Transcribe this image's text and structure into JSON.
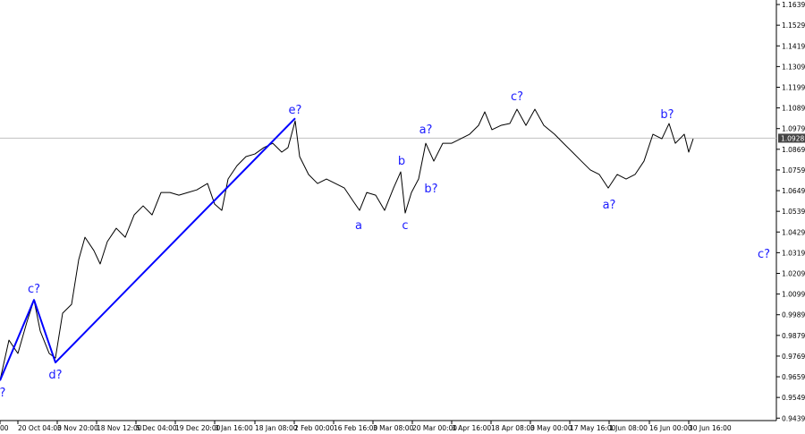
{
  "chart_data": {
    "type": "line",
    "xlim": [
      0,
      868
    ],
    "ylim": [
      0.9426,
      1.1663
    ],
    "xticks": [
      {
        "value": 0,
        "label": "00"
      },
      {
        "value": 20,
        "label": "20 Oct 04:00"
      },
      {
        "value": 64,
        "label": "3 Nov 20:00"
      },
      {
        "value": 108,
        "label": "18 Nov 12:00"
      },
      {
        "value": 152,
        "label": "5 Dec 04:00"
      },
      {
        "value": 196,
        "label": "19 Dec 20:00"
      },
      {
        "value": 240,
        "label": "3 Jan 16:00"
      },
      {
        "value": 285,
        "label": "18 Jan 08:00"
      },
      {
        "value": 329,
        "label": "2 Feb 00:00"
      },
      {
        "value": 373,
        "label": "16 Feb 16:00"
      },
      {
        "value": 417,
        "label": "3 Mar 08:00"
      },
      {
        "value": 461,
        "label": "20 Mar 00:00"
      },
      {
        "value": 505,
        "label": "3 Apr 16:00"
      },
      {
        "value": 549,
        "label": "18 Apr 08:00"
      },
      {
        "value": 593,
        "label": "3 May 00:00"
      },
      {
        "value": 637,
        "label": "17 May 16:00"
      },
      {
        "value": 681,
        "label": "1 Jun 08:00"
      },
      {
        "value": 726,
        "label": "16 Jun 00:00"
      },
      {
        "value": 770,
        "label": "30 Jun 16:00"
      }
    ],
    "yticks": [
      1.1639,
      1.1529,
      1.1419,
      1.1309,
      1.1199,
      1.1089,
      1.0979,
      1.0869,
      1.0759,
      1.0649,
      1.0539,
      1.0429,
      1.0319,
      1.0209,
      1.0099,
      0.9989,
      0.9879,
      0.9769,
      0.9659,
      0.9549,
      0.9439
    ],
    "current_price": 1.0928,
    "series": [
      {
        "color": "#000000",
        "x": [
          0,
          10,
          20,
          30,
          38,
          45,
          55,
          62,
          70,
          80,
          88,
          95,
          105,
          112,
          120,
          130,
          140,
          150,
          160,
          170,
          180,
          190,
          200,
          210,
          220,
          232,
          240,
          248,
          255,
          265,
          275,
          285,
          295,
          305,
          315,
          322,
          330,
          335,
          345,
          355,
          365,
          375,
          385,
          395,
          402,
          410,
          420,
          430,
          440,
          448,
          453,
          460,
          468,
          476,
          485,
          495,
          505,
          515,
          525,
          535,
          542,
          550,
          560,
          570,
          578,
          588,
          598,
          608,
          620,
          630,
          640,
          650,
          660,
          670,
          680,
          690,
          700,
          710,
          720,
          730,
          740,
          748,
          755,
          765,
          770,
          775
        ],
        "values": [
          0.9639,
          0.9854,
          0.9783,
          0.9949,
          1.0068,
          0.9902,
          0.9783,
          0.9759,
          0.9997,
          1.0044,
          1.0282,
          1.0401,
          1.033,
          1.0259,
          1.0378,
          1.0449,
          1.0401,
          1.052,
          1.0568,
          1.052,
          1.0639,
          1.0639,
          1.0625,
          1.0639,
          1.0653,
          1.0687,
          1.0577,
          1.0544,
          1.0711,
          1.0782,
          1.083,
          1.0844,
          1.0878,
          1.0901,
          1.0854,
          1.0878,
          1.102,
          1.083,
          1.0735,
          1.0687,
          1.0711,
          1.0687,
          1.0663,
          1.0592,
          1.0544,
          1.0639,
          1.0625,
          1.0544,
          1.0663,
          1.0749,
          1.053,
          1.0639,
          1.0711,
          1.0901,
          1.0806,
          1.0901,
          1.0901,
          1.0925,
          1.0949,
          1.0996,
          1.1068,
          1.0973,
          1.0996,
          1.1006,
          1.1082,
          1.0996,
          1.1082,
          1.0996,
          1.0949,
          1.0901,
          1.0854,
          1.0806,
          1.0759,
          1.0735,
          1.0663,
          1.0735,
          1.0711,
          1.0735,
          1.0806,
          1.0949,
          1.0925,
          1.1006,
          1.0901,
          1.0949,
          1.0854,
          1.0925
        ]
      },
      {
        "color": "#0000ff",
        "x": [
          0,
          38,
          62,
          330
        ],
        "values": [
          0.9639,
          1.0068,
          0.9735,
          1.1034
        ]
      }
    ],
    "annotations": [
      {
        "text": "?",
        "x": 3,
        "y": 0.9578
      },
      {
        "text": "c?",
        "x": 38,
        "y": 1.013
      },
      {
        "text": "d?",
        "x": 62,
        "y": 0.9673
      },
      {
        "text": "e?",
        "x": 330,
        "y": 1.1082
      },
      {
        "text": "a",
        "x": 401,
        "y": 1.0468
      },
      {
        "text": "b",
        "x": 449,
        "y": 1.0811
      },
      {
        "text": "c",
        "x": 453,
        "y": 1.0468
      },
      {
        "text": "a?",
        "x": 476,
        "y": 1.0977
      },
      {
        "text": "b?",
        "x": 482,
        "y": 1.0663
      },
      {
        "text": "c?",
        "x": 578,
        "y": 1.1153
      },
      {
        "text": "a?",
        "x": 681,
        "y": 1.0578
      },
      {
        "text": "b?",
        "x": 746,
        "y": 1.1058
      },
      {
        "text": "c?",
        "x": 854,
        "y": 1.0316
      }
    ]
  }
}
